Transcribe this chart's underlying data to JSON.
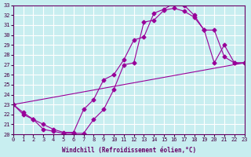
{
  "xlabel": "Windchill (Refroidissement éolien,°C)",
  "ylabel": "",
  "xlim": [
    0,
    23
  ],
  "ylim": [
    20,
    33
  ],
  "xticks": [
    0,
    1,
    2,
    3,
    4,
    5,
    6,
    7,
    8,
    9,
    10,
    11,
    12,
    13,
    14,
    15,
    16,
    17,
    18,
    19,
    20,
    21,
    22,
    23
  ],
  "yticks": [
    20,
    21,
    22,
    23,
    24,
    25,
    26,
    27,
    28,
    29,
    30,
    31,
    32,
    33
  ],
  "background_color": "#c8eef0",
  "grid_color": "#ffffff",
  "line_color": "#990099",
  "line1_x": [
    0,
    1,
    2,
    3,
    4,
    5,
    6,
    7,
    8,
    9,
    10,
    11,
    12,
    13,
    14,
    15,
    16,
    17,
    18,
    19,
    20,
    21,
    22,
    23
  ],
  "line1_y": [
    23,
    22,
    21.5,
    20.5,
    20.3,
    20.1,
    20.1,
    20.1,
    21.5,
    22.5,
    24.5,
    27,
    27.2,
    31.3,
    31.5,
    32.5,
    32.7,
    32.4,
    31.8,
    30.5,
    27.2,
    29.0,
    27.2,
    27.2
  ],
  "line2_x": [
    0,
    1,
    2,
    3,
    4,
    5,
    6,
    7,
    8,
    9,
    10,
    11,
    12,
    13,
    14,
    15,
    16,
    17,
    18,
    19,
    20,
    21,
    22,
    23
  ],
  "line2_y": [
    23,
    22.2,
    21.5,
    21.0,
    20.5,
    20.2,
    20.2,
    22.5,
    23.5,
    25.5,
    26.0,
    27.5,
    29.5,
    29.8,
    32.2,
    32.6,
    33.2,
    33.0,
    32.0,
    30.5,
    30.5,
    27.8,
    27.2,
    27.2
  ],
  "line3_x": [
    0,
    23
  ],
  "line3_y": [
    23,
    27.2
  ]
}
